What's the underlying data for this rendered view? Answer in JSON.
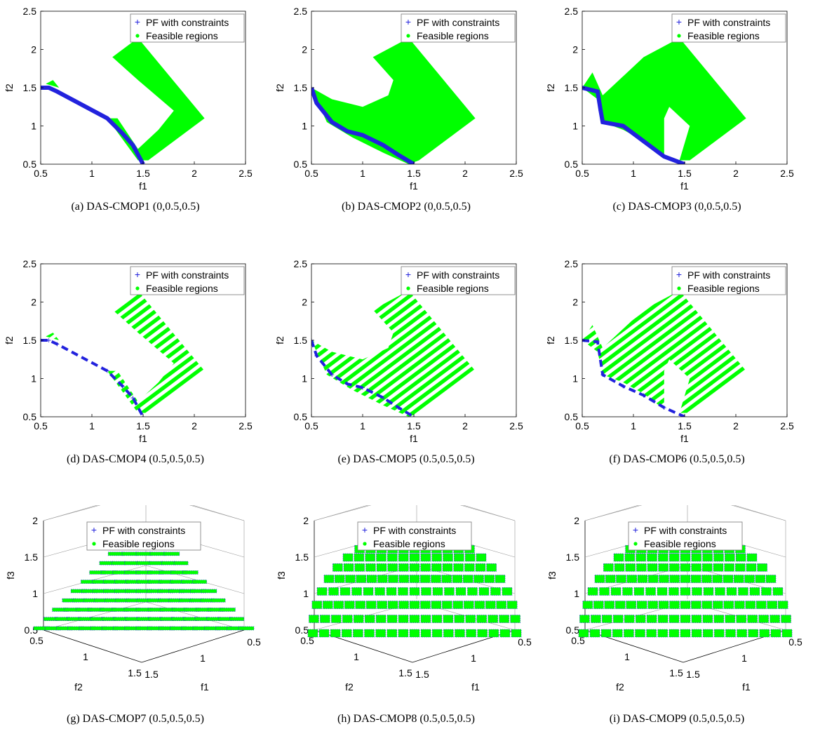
{
  "colors": {
    "pf": "#2222dd",
    "feasible": "#00ff00",
    "axis": "#000000",
    "box3d": "#999999"
  },
  "legend": {
    "pf_label": "PF with constraints",
    "feasible_label": "Feasible regions"
  },
  "chart_data": [
    {
      "id": "a",
      "type": "scatter",
      "caption": "(a) DAS-CMOP1 (0,0.5,0.5)",
      "xlabel": "f1",
      "ylabel": "f2",
      "xlim": [
        0.5,
        2.5
      ],
      "ylim": [
        0.5,
        2.5
      ],
      "xticks": [
        "0.5",
        "1",
        "1.5",
        "2",
        "2.5"
      ],
      "yticks": [
        "0.5",
        "1",
        "1.5",
        "2",
        "2.5"
      ],
      "legend": "top-right",
      "feasible": [
        [
          [
            1.2,
            1.9
          ],
          [
            1.45,
            2.15
          ],
          [
            2.1,
            1.1
          ],
          [
            1.55,
            0.55
          ],
          [
            1.45,
            0.55
          ],
          [
            1.15,
            1.1
          ],
          [
            1.25,
            1.1
          ],
          [
            1.45,
            0.7
          ],
          [
            1.65,
            0.95
          ],
          [
            1.8,
            1.2
          ],
          [
            1.45,
            1.6
          ]
        ],
        [
          [
            0.55,
            1.55
          ],
          [
            0.62,
            1.6
          ],
          [
            0.68,
            1.5
          ]
        ]
      ],
      "pf": [
        [
          0.5,
          1.5
        ],
        [
          0.58,
          1.5
        ],
        [
          0.66,
          1.45
        ],
        [
          1.15,
          1.1
        ],
        [
          1.3,
          0.9
        ],
        [
          1.4,
          0.75
        ],
        [
          1.5,
          0.5
        ]
      ]
    },
    {
      "id": "b",
      "type": "scatter",
      "caption": "(b) DAS-CMOP2 (0,0.5,0.5)",
      "xlabel": "f1",
      "ylabel": "f2",
      "xlim": [
        0.5,
        2.5
      ],
      "ylim": [
        0.5,
        2.5
      ],
      "xticks": [
        "0.5",
        "1",
        "1.5",
        "2",
        "2.5"
      ],
      "yticks": [
        "0.5",
        "1",
        "1.5",
        "2",
        "2.5"
      ],
      "legend": "top-right",
      "feasible": [
        [
          [
            0.5,
            1.5
          ],
          [
            0.7,
            1.35
          ],
          [
            1.0,
            1.25
          ],
          [
            1.25,
            1.4
          ],
          [
            1.3,
            1.6
          ],
          [
            1.1,
            1.9
          ],
          [
            1.45,
            2.15
          ],
          [
            2.1,
            1.1
          ],
          [
            1.55,
            0.55
          ],
          [
            1.45,
            0.5
          ],
          [
            1.2,
            0.65
          ],
          [
            0.9,
            0.85
          ],
          [
            0.65,
            1.05
          ]
        ]
      ],
      "pf": [
        [
          0.5,
          1.5
        ],
        [
          0.55,
          1.3
        ],
        [
          0.7,
          1.05
        ],
        [
          0.85,
          0.93
        ],
        [
          1.0,
          0.88
        ],
        [
          1.2,
          0.75
        ],
        [
          1.35,
          0.62
        ],
        [
          1.5,
          0.5
        ]
      ]
    },
    {
      "id": "c",
      "type": "scatter",
      "caption": "(c) DAS-CMOP3 (0,0.5,0.5)",
      "xlabel": "f1",
      "ylabel": "f2",
      "xlim": [
        0.5,
        2.5
      ],
      "ylim": [
        0.5,
        2.5
      ],
      "xticks": [
        "0.5",
        "1",
        "1.5",
        "2",
        "2.5"
      ],
      "yticks": [
        "0.5",
        "1",
        "1.5",
        "2",
        "2.5"
      ],
      "legend": "top-right",
      "feasible": [
        [
          [
            0.5,
            1.5
          ],
          [
            0.6,
            1.7
          ],
          [
            0.7,
            1.4
          ],
          [
            1.1,
            1.9
          ],
          [
            1.45,
            2.15
          ],
          [
            2.1,
            1.1
          ],
          [
            1.55,
            0.55
          ],
          [
            1.45,
            0.55
          ],
          [
            1.55,
            1.0
          ],
          [
            1.35,
            1.25
          ],
          [
            1.3,
            1.1
          ],
          [
            1.3,
            0.6
          ],
          [
            1.1,
            0.8
          ],
          [
            0.9,
            0.95
          ],
          [
            0.7,
            1.05
          ],
          [
            0.65,
            1.35
          ]
        ]
      ],
      "pf": [
        [
          0.5,
          1.5
        ],
        [
          0.65,
          1.45
        ],
        [
          0.68,
          1.2
        ],
        [
          0.7,
          1.05
        ],
        [
          0.9,
          1.0
        ],
        [
          1.1,
          0.8
        ],
        [
          1.3,
          0.6
        ],
        [
          1.5,
          0.5
        ]
      ]
    },
    {
      "id": "d",
      "type": "scatter",
      "caption": "(d) DAS-CMOP4 (0.5,0.5,0.5)",
      "xlabel": "f1",
      "ylabel": "f2",
      "xlim": [
        0.5,
        2.5
      ],
      "ylim": [
        0.5,
        2.5
      ],
      "xticks": [
        "0.5",
        "1",
        "1.5",
        "2",
        "2.5"
      ],
      "yticks": [
        "0.5",
        "1",
        "1.5",
        "2",
        "2.5"
      ],
      "legend": "top-right",
      "feasible": [
        [
          [
            1.2,
            1.9
          ],
          [
            1.45,
            2.15
          ],
          [
            2.1,
            1.1
          ],
          [
            1.55,
            0.55
          ],
          [
            1.45,
            0.55
          ],
          [
            1.15,
            1.1
          ],
          [
            1.25,
            1.1
          ],
          [
            1.45,
            0.7
          ],
          [
            1.65,
            0.95
          ],
          [
            1.8,
            1.2
          ],
          [
            1.45,
            1.6
          ]
        ],
        [
          [
            0.55,
            1.55
          ],
          [
            0.62,
            1.6
          ],
          [
            0.68,
            1.5
          ]
        ]
      ],
      "stripes": true,
      "pf": [
        [
          0.5,
          1.5
        ],
        [
          0.58,
          1.5
        ],
        [
          0.66,
          1.45
        ],
        [
          1.15,
          1.1
        ],
        [
          1.3,
          0.9
        ],
        [
          1.4,
          0.75
        ],
        [
          1.5,
          0.5
        ]
      ]
    },
    {
      "id": "e",
      "type": "scatter",
      "caption": "(e) DAS-CMOP5 (0.5,0.5,0.5)",
      "xlabel": "f1",
      "ylabel": "f2",
      "xlim": [
        0.5,
        2.5
      ],
      "ylim": [
        0.5,
        2.5
      ],
      "xticks": [
        "0.5",
        "1",
        "1.5",
        "2",
        "2.5"
      ],
      "yticks": [
        "0.5",
        "1",
        "1.5",
        "2",
        "2.5"
      ],
      "legend": "top-right",
      "feasible": [
        [
          [
            0.5,
            1.5
          ],
          [
            0.7,
            1.35
          ],
          [
            1.0,
            1.25
          ],
          [
            1.25,
            1.4
          ],
          [
            1.3,
            1.6
          ],
          [
            1.1,
            1.9
          ],
          [
            1.45,
            2.15
          ],
          [
            2.1,
            1.1
          ],
          [
            1.55,
            0.55
          ],
          [
            1.45,
            0.5
          ],
          [
            1.2,
            0.65
          ],
          [
            0.9,
            0.85
          ],
          [
            0.65,
            1.05
          ]
        ]
      ],
      "stripes": true,
      "pf": [
        [
          0.5,
          1.5
        ],
        [
          0.55,
          1.3
        ],
        [
          0.7,
          1.05
        ],
        [
          0.85,
          0.93
        ],
        [
          1.0,
          0.88
        ],
        [
          1.2,
          0.75
        ],
        [
          1.35,
          0.62
        ],
        [
          1.5,
          0.5
        ]
      ]
    },
    {
      "id": "f",
      "type": "scatter",
      "caption": "(f) DAS-CMOP6 (0.5,0.5,0.5)",
      "xlabel": "f1",
      "ylabel": "f2",
      "xlim": [
        0.5,
        2.5
      ],
      "ylim": [
        0.5,
        2.5
      ],
      "xticks": [
        "0.5",
        "1",
        "1.5",
        "2",
        "2.5"
      ],
      "yticks": [
        "0.5",
        "1",
        "1.5",
        "2",
        "2.5"
      ],
      "legend": "top-right",
      "feasible": [
        [
          [
            0.5,
            1.5
          ],
          [
            0.6,
            1.7
          ],
          [
            0.7,
            1.4
          ],
          [
            1.1,
            1.9
          ],
          [
            1.45,
            2.15
          ],
          [
            2.1,
            1.1
          ],
          [
            1.55,
            0.55
          ],
          [
            1.45,
            0.55
          ],
          [
            1.55,
            1.0
          ],
          [
            1.35,
            1.25
          ],
          [
            1.3,
            1.1
          ],
          [
            1.3,
            0.6
          ],
          [
            1.1,
            0.8
          ],
          [
            0.9,
            0.95
          ],
          [
            0.7,
            1.05
          ],
          [
            0.65,
            1.35
          ]
        ]
      ],
      "stripes": true,
      "pf": [
        [
          0.5,
          1.5
        ],
        [
          0.65,
          1.48
        ],
        [
          0.7,
          1.05
        ],
        [
          0.9,
          0.9
        ],
        [
          1.1,
          0.78
        ],
        [
          1.3,
          0.62
        ],
        [
          1.5,
          0.5
        ]
      ]
    },
    {
      "id": "g",
      "type": "scatter3d",
      "caption": "(g) DAS-CMOP7 (0.5,0.5,0.5)",
      "xlabel": "f1",
      "ylabel": "f2",
      "zlabel": "f3",
      "zlim": [
        0.5,
        2
      ],
      "zticks": [
        "0.5",
        "1",
        "1.5",
        "2"
      ],
      "f1ticks": [
        "0.5",
        "1",
        "1.5"
      ],
      "f2ticks": [
        "0.5",
        "1",
        "1.5"
      ],
      "shape": "plane",
      "legend": "top"
    },
    {
      "id": "h",
      "type": "scatter3d",
      "caption": "(h) DAS-CMOP8 (0.5,0.5,0.5)",
      "xlabel": "f1",
      "ylabel": "f2",
      "zlabel": "f3",
      "zlim": [
        0.5,
        2
      ],
      "zticks": [
        "0.5",
        "1",
        "1.5",
        "2"
      ],
      "f1ticks": [
        "0.5",
        "1",
        "1.5"
      ],
      "f2ticks": [
        "0.5",
        "1",
        "1.5"
      ],
      "shape": "sphere",
      "legend": "top"
    },
    {
      "id": "i",
      "type": "scatter3d",
      "caption": "(i) DAS-CMOP9 (0.5,0.5,0.5)",
      "xlabel": "f1",
      "ylabel": "f2",
      "zlabel": "f3",
      "zlim": [
        0.5,
        2
      ],
      "zticks": [
        "0.5",
        "1",
        "1.5",
        "2"
      ],
      "f1ticks": [
        "0.5",
        "1",
        "1.5"
      ],
      "f2ticks": [
        "0.5",
        "1",
        "1.5"
      ],
      "shape": "sphere",
      "legend": "top"
    }
  ]
}
